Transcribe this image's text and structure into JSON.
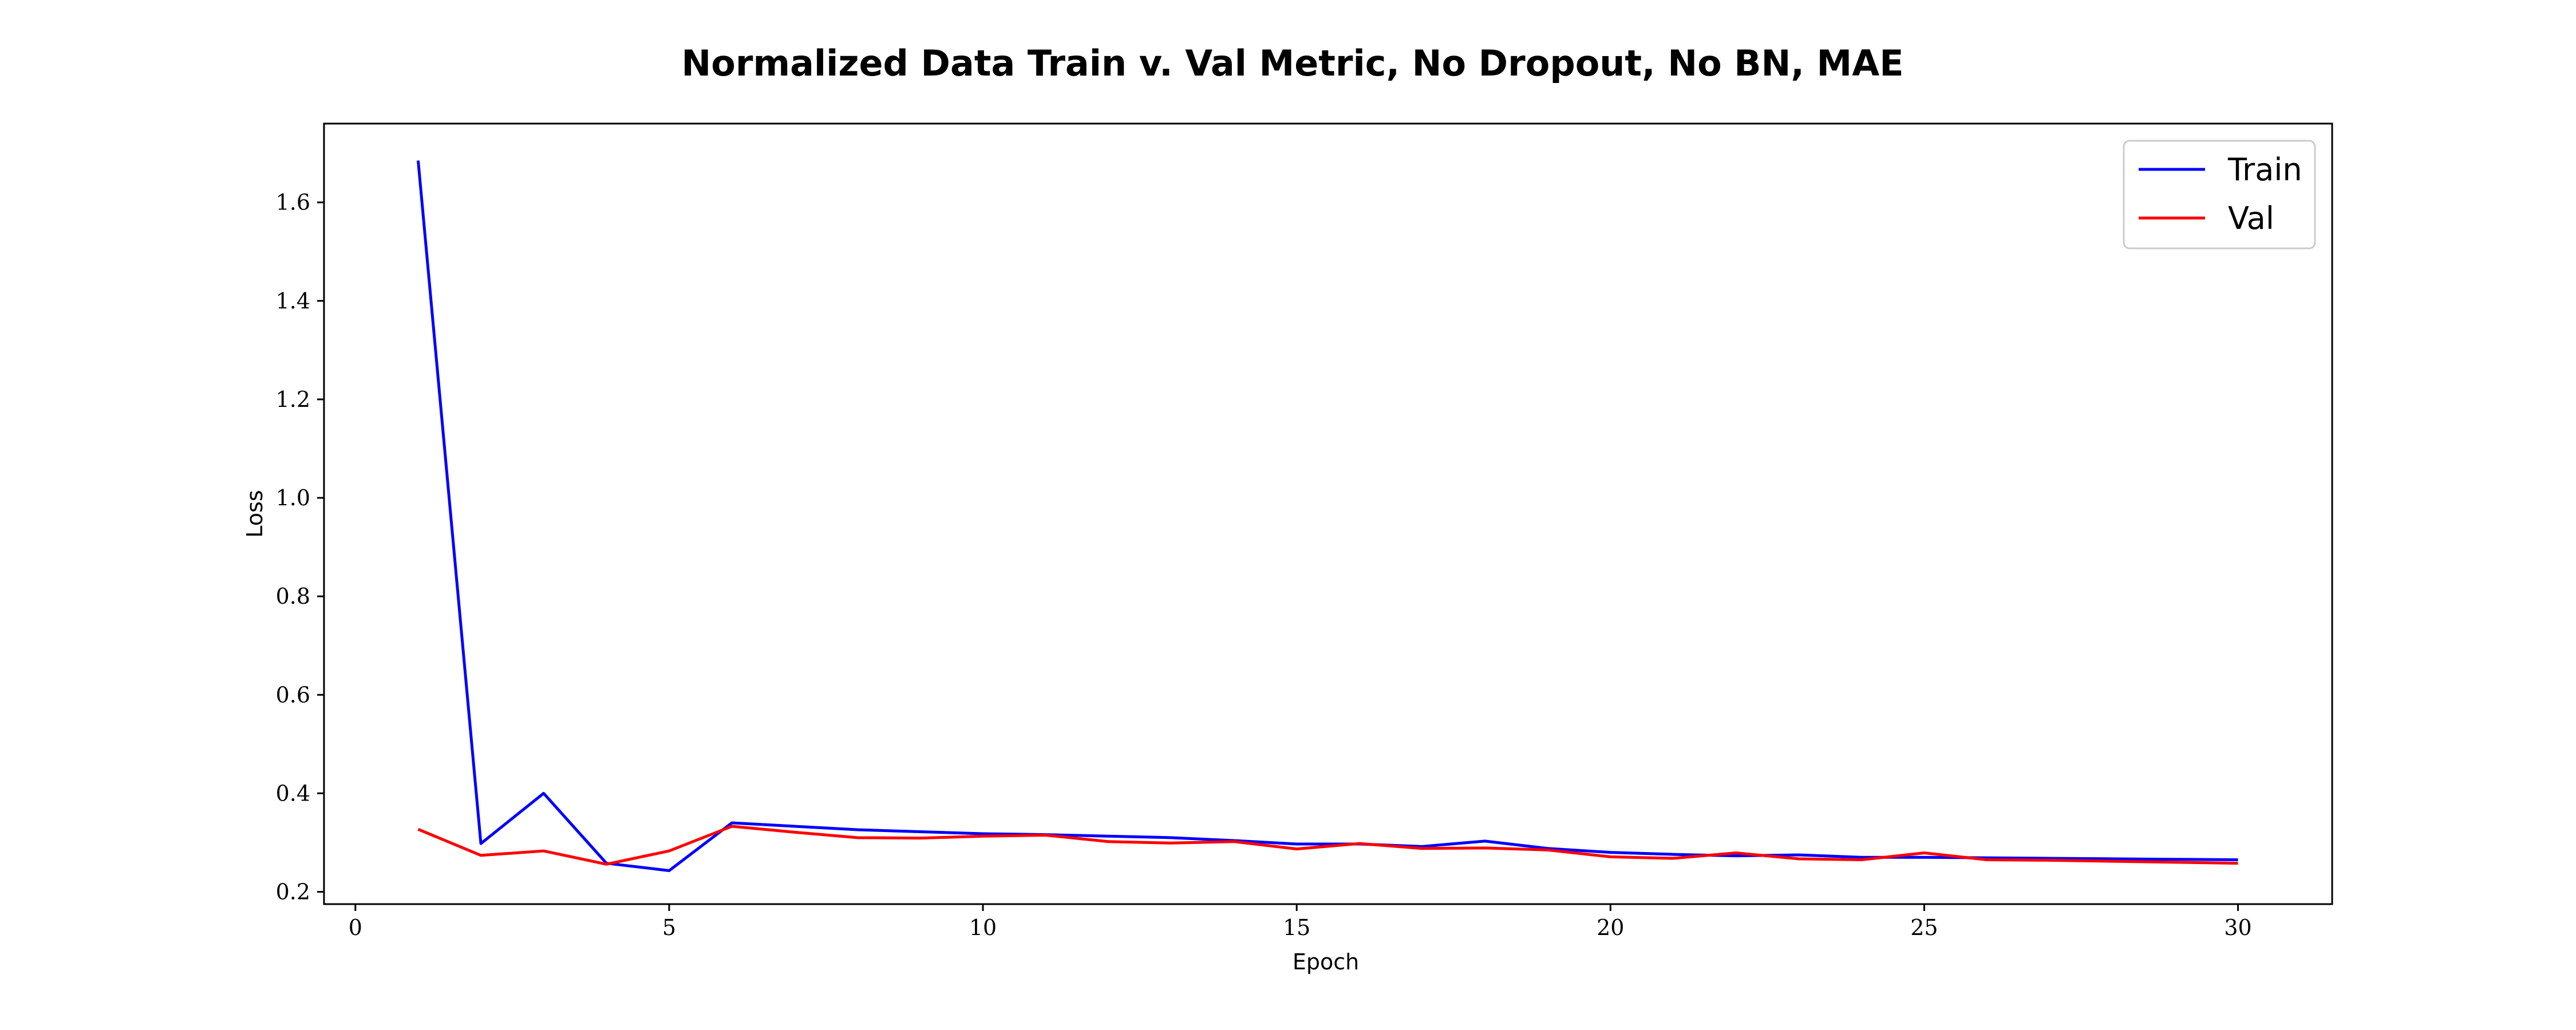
{
  "chart_data": {
    "type": "line",
    "title": "Normalized Data Train v. Val Metric, No Dropout, No BN, MAE",
    "xlabel": "Epoch",
    "ylabel": "Loss",
    "xlim": [
      -0.5,
      31.5
    ],
    "ylim": [
      0.175,
      1.76
    ],
    "xticks": [
      0,
      5,
      10,
      15,
      20,
      25,
      30
    ],
    "yticks": [
      0.2,
      0.4,
      0.6,
      0.8,
      1.0,
      1.2,
      1.4,
      1.6
    ],
    "xtick_labels": [
      "0",
      "5",
      "10",
      "15",
      "20",
      "25",
      "30"
    ],
    "ytick_labels": [
      "0.2",
      "0.4",
      "0.6",
      "0.8",
      "1.0",
      "1.2",
      "1.4",
      "1.6"
    ],
    "grid": false,
    "legend_position": "top-right",
    "x": [
      1,
      2,
      3,
      4,
      5,
      6,
      7,
      8,
      9,
      10,
      11,
      12,
      13,
      14,
      15,
      16,
      17,
      18,
      19,
      20,
      21,
      22,
      23,
      24,
      25,
      26,
      27,
      28,
      29,
      30
    ],
    "series": [
      {
        "name": "Train",
        "color": "#0000ff",
        "values": [
          1.685,
          0.298,
          0.4,
          0.258,
          0.243,
          0.34,
          0.333,
          0.326,
          0.322,
          0.318,
          0.316,
          0.313,
          0.31,
          0.304,
          0.297,
          0.297,
          0.292,
          0.303,
          0.288,
          0.28,
          0.276,
          0.273,
          0.275,
          0.27,
          0.27,
          0.269,
          0.268,
          0.267,
          0.266,
          0.265
        ]
      },
      {
        "name": "Val",
        "color": "#ff0000",
        "values": [
          0.327,
          0.274,
          0.283,
          0.256,
          0.283,
          0.333,
          0.321,
          0.31,
          0.309,
          0.313,
          0.315,
          0.302,
          0.299,
          0.302,
          0.287,
          0.298,
          0.288,
          0.289,
          0.285,
          0.271,
          0.268,
          0.279,
          0.267,
          0.265,
          0.279,
          0.265,
          0.264,
          0.262,
          0.26,
          0.258
        ]
      }
    ]
  }
}
